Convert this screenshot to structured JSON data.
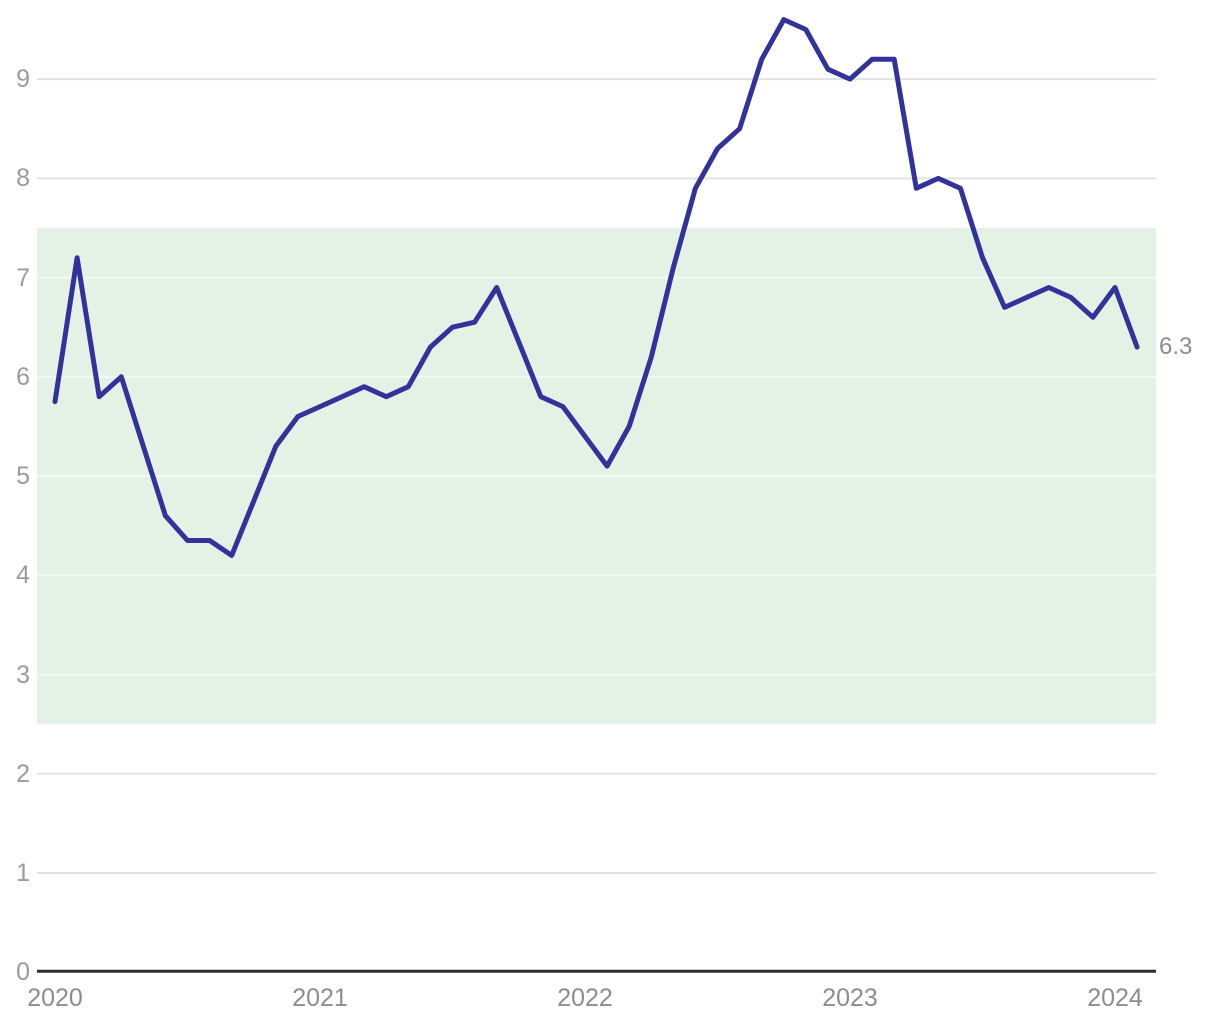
{
  "chart_data": {
    "type": "line",
    "title": "",
    "xlabel": "",
    "ylabel": "",
    "x_tick_labels": [
      "2020",
      "2021",
      "2022",
      "2023",
      "2024"
    ],
    "y_ticks": [
      0,
      1,
      2,
      3,
      4,
      5,
      6,
      7,
      8,
      9
    ],
    "ylim": [
      0,
      9.9
    ],
    "grid": "horizontal",
    "legend_position": "none",
    "end_label": "6.3",
    "reference_band": {
      "from": 2.5,
      "to": 7.5,
      "color": "#e4f2e6"
    },
    "series": [
      {
        "name": "value",
        "color": "#32329b",
        "x": [
          "2020-01",
          "2020-02",
          "2020-03",
          "2020-04",
          "2020-05",
          "2020-06",
          "2020-07",
          "2020-08",
          "2020-09",
          "2020-10",
          "2020-11",
          "2020-12",
          "2021-01",
          "2021-02",
          "2021-03",
          "2021-04",
          "2021-05",
          "2021-06",
          "2021-07",
          "2021-08",
          "2021-09",
          "2021-10",
          "2021-11",
          "2021-12",
          "2022-01",
          "2022-02",
          "2022-03",
          "2022-04",
          "2022-05",
          "2022-06",
          "2022-07",
          "2022-08",
          "2022-09",
          "2022-10",
          "2022-11",
          "2022-12",
          "2023-01",
          "2023-02",
          "2023-03",
          "2023-04",
          "2023-05",
          "2023-06",
          "2023-07",
          "2023-08",
          "2023-09",
          "2023-10",
          "2023-11",
          "2023-12",
          "2024-01",
          "2024-02"
        ],
        "values": [
          5.75,
          7.2,
          5.8,
          6.0,
          5.3,
          4.6,
          4.35,
          4.35,
          4.2,
          4.75,
          5.3,
          5.6,
          5.7,
          5.8,
          5.9,
          5.8,
          5.9,
          6.3,
          6.5,
          6.55,
          6.9,
          6.35,
          5.8,
          5.7,
          5.4,
          5.1,
          5.5,
          6.2,
          7.1,
          7.9,
          8.3,
          8.5,
          9.2,
          9.6,
          9.5,
          9.1,
          9.0,
          9.2,
          9.2,
          7.9,
          8.0,
          7.9,
          7.2,
          6.7,
          6.8,
          6.9,
          6.8,
          6.6,
          6.9,
          6.3
        ]
      }
    ],
    "colors": {
      "line": "#32329b",
      "band": "#e4f2e6",
      "gridline": "#e2e2e2",
      "gridline_in_band": "rgba(255,255,255,0.55)",
      "axis": "#2d2d2d",
      "y_label": "#9b9b9b",
      "x_label": "#8d8d8d",
      "end_label": "#8c8c8c"
    }
  }
}
